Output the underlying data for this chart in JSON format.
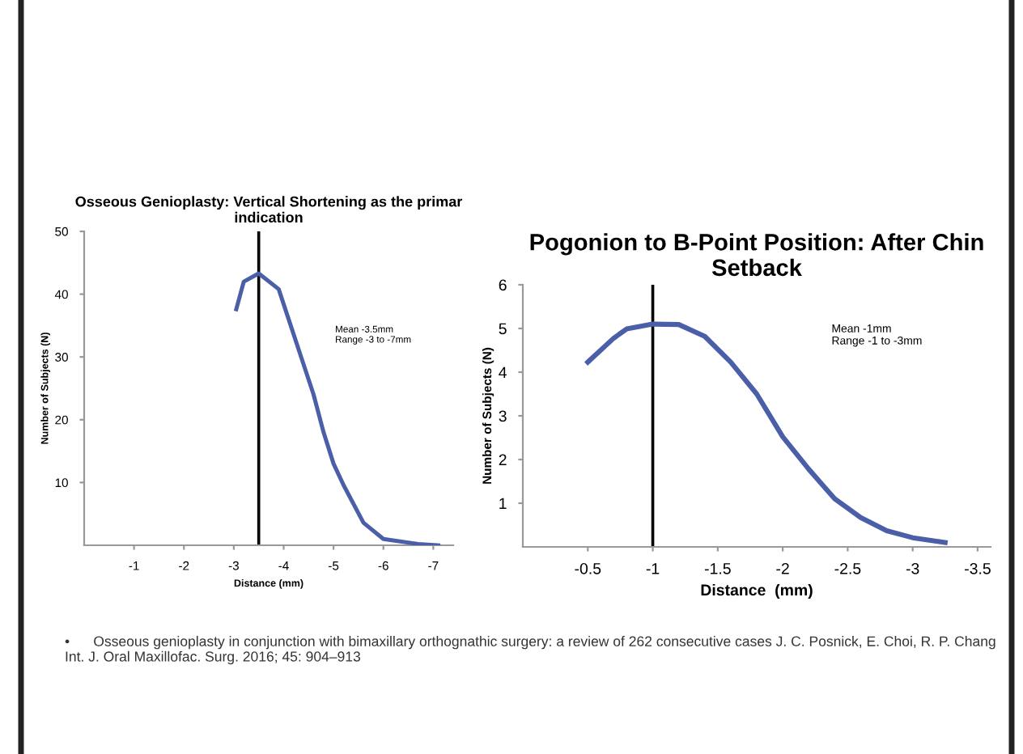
{
  "chart_data": [
    {
      "type": "line",
      "title": "Osseous Genioplasty: Vertical Shortening as the primar\nindication",
      "xlabel": "Distance (mm)",
      "ylabel": "Number of Subjects (N)",
      "x": [
        -3.05,
        -3.2,
        -3.5,
        -3.9,
        -4.1,
        -4.35,
        -4.6,
        -4.8,
        -5.0,
        -5.2,
        -5.6,
        -6.0,
        -6.7,
        -7.1
      ],
      "series": [
        {
          "color": "#4a5fa8",
          "values": [
            37.6,
            42,
            43.3,
            40.8,
            36,
            30,
            24,
            18,
            13,
            9.6,
            3.6,
            1,
            0.2,
            0
          ]
        }
      ],
      "xlim": [
        0,
        -7.4
      ],
      "xticks": [
        -1,
        -2,
        -3,
        -4,
        -5,
        -6,
        -7
      ],
      "ylim": [
        0,
        50
      ],
      "yticks": [
        10,
        20,
        30,
        40,
        50
      ],
      "ref_lines": [
        {
          "axis": "x",
          "value": -3.5,
          "color": "#000000"
        }
      ],
      "annotations": [
        "Mean -3.5mm\nRange -3 to -7mm"
      ],
      "grid": false,
      "legend": false,
      "marker": "none",
      "line_style": "solid"
    },
    {
      "type": "line",
      "title": "Pogonion to B-Point Position: After Chin\nSetback",
      "xlabel": "Distance  (mm)",
      "ylabel": "Number of Subjects (N)",
      "x": [
        -0.5,
        -0.7,
        -0.8,
        -1.0,
        -1.2,
        -1.4,
        -1.6,
        -1.8,
        -2.0,
        -2.2,
        -2.4,
        -2.6,
        -2.8,
        -3.0,
        -3.25
      ],
      "series": [
        {
          "color": "#4a5fa8",
          "values": [
            4.23,
            4.78,
            4.99,
            5.1,
            5.09,
            4.82,
            4.23,
            3.5,
            2.52,
            1.78,
            1.1,
            0.67,
            0.37,
            0.21,
            0.1
          ]
        }
      ],
      "xlim": [
        0,
        -3.6
      ],
      "xticks": [
        -0.5,
        -1,
        -1.5,
        -2,
        -2.5,
        -3,
        -3.5
      ],
      "ylim": [
        0,
        6
      ],
      "yticks": [
        1,
        2,
        3,
        4,
        5,
        6
      ],
      "ref_lines": [
        {
          "axis": "x",
          "value": -1,
          "color": "#000000"
        }
      ],
      "annotations": [
        "Mean -1mm\nRange -1 to -3mm",
        "•      Osseous genioplasty in conjunction with bimaxillary orthognathic surgery: a review of 262 consecutive cases J. C. Posnick, E. Choi, R. P. Chang   Int. J. Oral Maxillofac. Surg. 2016; 45: 904–913"
      ],
      "grid": false,
      "legend": false,
      "marker": "none",
      "line_style": "solid"
    }
  ]
}
